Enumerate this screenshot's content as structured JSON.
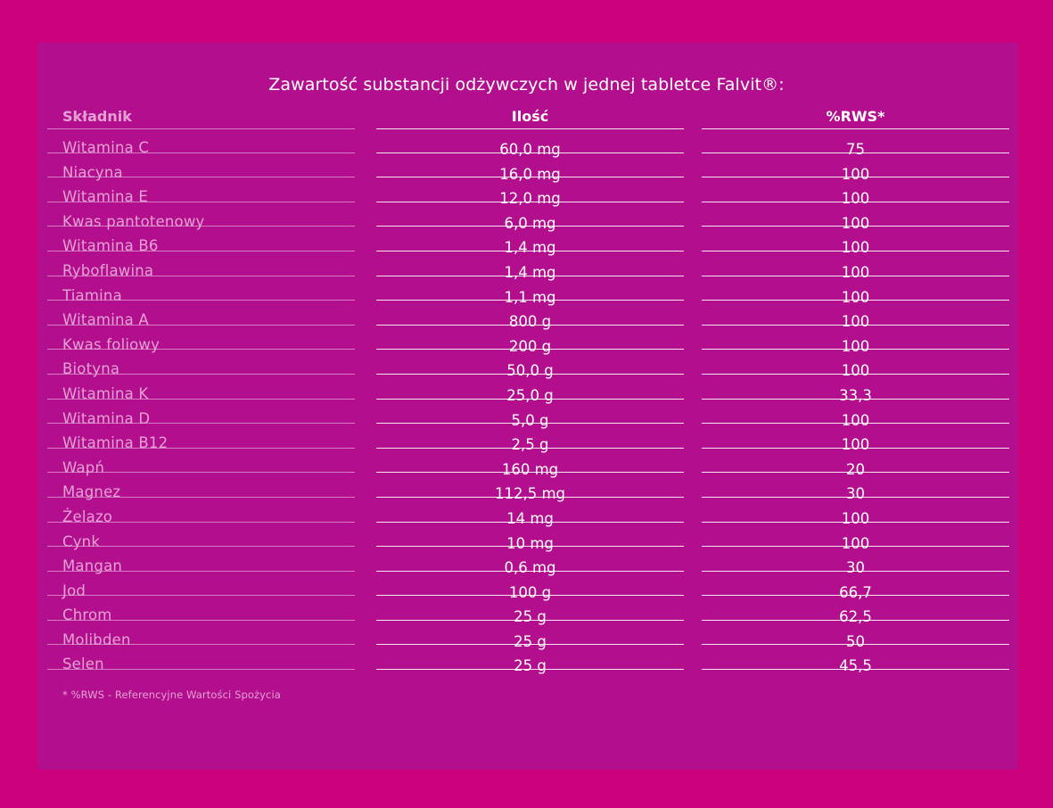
{
  "title": "Zawartość substancji odżywczych w jednej tabletce Falvit®:",
  "table": {
    "headers": {
      "name": "Składnik",
      "amount": "Ilość",
      "rws": "%RWS*"
    },
    "rows": [
      {
        "name": "Witamina C",
        "amount": "60,0 mg",
        "rws": "75"
      },
      {
        "name": "Niacyna",
        "amount": "16,0 mg",
        "rws": "100"
      },
      {
        "name": "Witamina E",
        "amount": "12,0 mg",
        "rws": "100"
      },
      {
        "name": "Kwas pantotenowy",
        "amount": "6,0 mg",
        "rws": "100"
      },
      {
        "name": "Witamina B6",
        "amount": "1,4 mg",
        "rws": "100"
      },
      {
        "name": "Ryboflawina",
        "amount": "1,4 mg",
        "rws": "100"
      },
      {
        "name": "Tiamina",
        "amount": "1,1 mg",
        "rws": "100"
      },
      {
        "name": "Witamina A",
        "amount": "800 g",
        "rws": "100"
      },
      {
        "name": "Kwas foliowy",
        "amount": "200 g",
        "rws": "100"
      },
      {
        "name": "Biotyna",
        "amount": "50,0 g",
        "rws": "100"
      },
      {
        "name": "Witamina K",
        "amount": "25,0 g",
        "rws": "33,3"
      },
      {
        "name": "Witamina D",
        "amount": "5,0 g",
        "rws": "100"
      },
      {
        "name": "Witamina B12",
        "amount": "2,5 g",
        "rws": "100"
      },
      {
        "name": "Wapń",
        "amount": "160 mg",
        "rws": "20"
      },
      {
        "name": "Magnez",
        "amount": "112,5 mg",
        "rws": "30"
      },
      {
        "name": "Żelazo",
        "amount": "14 mg",
        "rws": "100"
      },
      {
        "name": "Cynk",
        "amount": "10 mg",
        "rws": "100"
      },
      {
        "name": "Mangan",
        "amount": "0,6 mg",
        "rws": "30"
      },
      {
        "name": "Jod",
        "amount": "100 g",
        "rws": "66,7"
      },
      {
        "name": "Chrom",
        "amount": "25 g",
        "rws": "62,5"
      },
      {
        "name": "Molibden",
        "amount": "25 g",
        "rws": "50"
      },
      {
        "name": "Selen",
        "amount": "25 g",
        "rws": "45,5"
      }
    ]
  },
  "footnote": "* %RWS - Referencyjne Wartości Spożycia"
}
